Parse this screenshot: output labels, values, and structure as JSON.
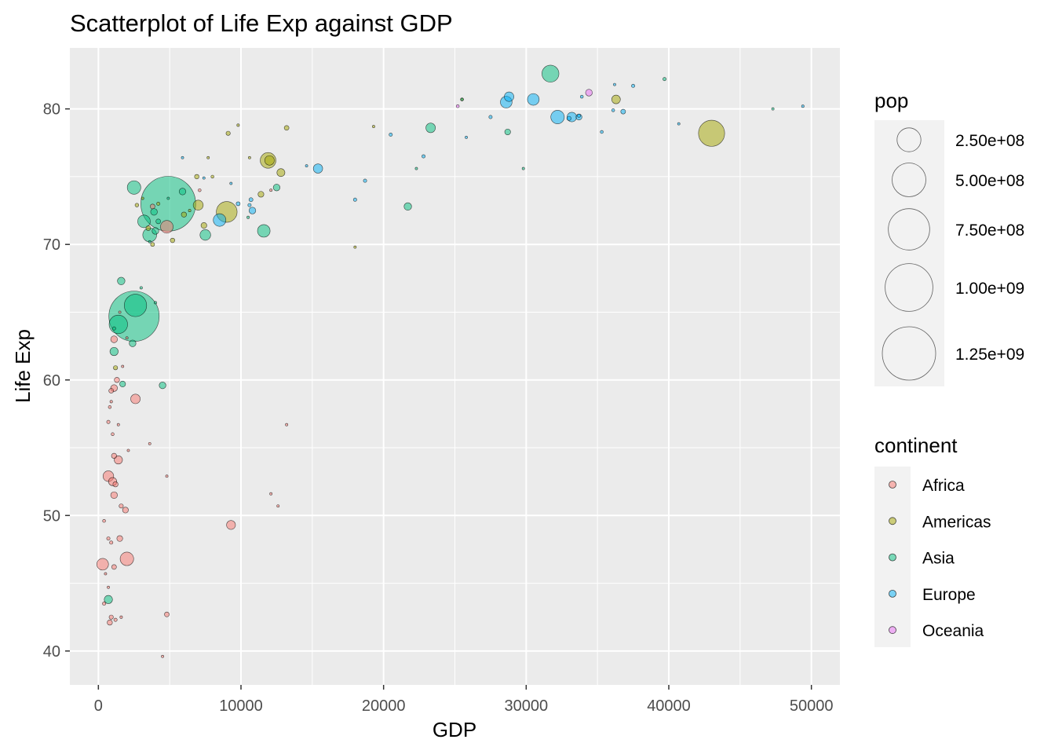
{
  "chart_data": {
    "type": "scatter",
    "title": "Scatterplot of Life Exp against GDP",
    "xlabel": "GDP",
    "ylabel": "Life Exp",
    "xlim": [
      -2000,
      52000
    ],
    "ylim": [
      37.5,
      84.5
    ],
    "x_ticks": [
      0,
      10000,
      20000,
      30000,
      40000,
      50000
    ],
    "y_ticks": [
      40,
      50,
      60,
      70,
      80
    ],
    "grid": true,
    "size_legend": {
      "title": "pop",
      "breaks": [
        250000000,
        500000000,
        750000000,
        1000000000,
        1250000000
      ],
      "labels": [
        "2.50e+08",
        "5.00e+08",
        "7.50e+08",
        "1.00e+09",
        "1.25e+09"
      ]
    },
    "color_legend": {
      "title": "continent",
      "entries": [
        {
          "name": "Africa",
          "color": "#F8766D"
        },
        {
          "name": "Americas",
          "color": "#A3A500"
        },
        {
          "name": "Asia",
          "color": "#00BF7D"
        },
        {
          "name": "Europe",
          "color": "#00B0F6"
        },
        {
          "name": "Oceania",
          "color": "#E76BF3"
        }
      ]
    },
    "series": [
      {
        "name": "Africa",
        "points": [
          [
            300,
            46.4,
            60000000
          ],
          [
            2000,
            46.8,
            80000000
          ],
          [
            9300,
            49.3,
            35000000
          ],
          [
            700,
            52.9,
            50000000
          ],
          [
            1000,
            52.5,
            30000000
          ],
          [
            1200,
            52.3,
            12000000
          ],
          [
            1100,
            51.5,
            20000000
          ],
          [
            1400,
            54.1,
            30000000
          ],
          [
            1100,
            54.4,
            12000000
          ],
          [
            1300,
            60.0,
            12000000
          ],
          [
            1100,
            59.4,
            20000000
          ],
          [
            900,
            59.2,
            10000000
          ],
          [
            2600,
            58.6,
            40000000
          ],
          [
            1100,
            63.0,
            20000000
          ],
          [
            4800,
            71.3,
            70000000
          ],
          [
            1500,
            48.3,
            15000000
          ],
          [
            700,
            48.3,
            5000000
          ],
          [
            900,
            48.0,
            5000000
          ],
          [
            400,
            49.6,
            4000000
          ],
          [
            400,
            43.5,
            5000000
          ],
          [
            800,
            42.1,
            12000000
          ],
          [
            900,
            42.5,
            8000000
          ],
          [
            1200,
            42.3,
            5000000
          ],
          [
            1600,
            42.5,
            3000000
          ],
          [
            4800,
            42.7,
            10000000
          ],
          [
            4500,
            39.6,
            1000000
          ],
          [
            500,
            45.7,
            1000000
          ],
          [
            700,
            44.7,
            2000000
          ],
          [
            1100,
            46.2,
            10000000
          ],
          [
            1600,
            50.7,
            8000000
          ],
          [
            1900,
            50.4,
            15000000
          ],
          [
            1000,
            56.0,
            4000000
          ],
          [
            700,
            56.9,
            5000000
          ],
          [
            800,
            58.0,
            4000000
          ],
          [
            900,
            58.4,
            3000000
          ],
          [
            1400,
            56.7,
            2500000
          ],
          [
            2100,
            54.8,
            1000000
          ],
          [
            3600,
            55.3,
            2000000
          ],
          [
            4800,
            52.9,
            2000000
          ],
          [
            12100,
            51.6,
            1000000
          ],
          [
            12600,
            50.7,
            1000000
          ],
          [
            13200,
            56.7,
            1000000
          ],
          [
            3800,
            72.8,
            10000000
          ],
          [
            7100,
            74.0,
            4000000
          ],
          [
            12100,
            74.0,
            3000000
          ],
          [
            1700,
            61.0,
            2000000
          ],
          [
            2000,
            63.1,
            1000000
          ],
          [
            1500,
            65.0,
            1000000
          ]
        ]
      },
      {
        "name": "Americas",
        "points": [
          [
            43000,
            78.2,
            300000000
          ],
          [
            9000,
            72.4,
            190000000
          ],
          [
            12000,
            76.2,
            40000000
          ],
          [
            36300,
            80.7,
            33000000
          ],
          [
            7000,
            72.9,
            44000000
          ],
          [
            11900,
            76.2,
            108000000
          ],
          [
            7400,
            71.4,
            15000000
          ],
          [
            12800,
            75.3,
            28000000
          ],
          [
            11400,
            73.7,
            15000000
          ],
          [
            13200,
            78.6,
            10000000
          ],
          [
            9100,
            78.2,
            8000000
          ],
          [
            6000,
            72.2,
            12000000
          ],
          [
            8000,
            75.0,
            4000000
          ],
          [
            5200,
            70.3,
            9000000
          ],
          [
            3500,
            71.2,
            10000000
          ],
          [
            3800,
            70.0,
            7000000
          ],
          [
            6900,
            75.0,
            9000000
          ],
          [
            19300,
            78.7,
            1000000
          ],
          [
            25500,
            80.7,
            4000000
          ],
          [
            18000,
            69.8,
            1000000
          ],
          [
            10600,
            76.4,
            1000000
          ],
          [
            9800,
            78.8,
            3000000
          ],
          [
            7700,
            76.4,
            1000000
          ],
          [
            4200,
            73.0,
            5000000
          ],
          [
            2700,
            72.9,
            6000000
          ],
          [
            6400,
            72.5,
            3000000
          ],
          [
            1200,
            60.9,
            8000000
          ],
          [
            3100,
            73.4,
            3000000
          ]
        ]
      },
      {
        "name": "Asia",
        "points": [
          [
            4900,
            73.0,
            1320000000
          ],
          [
            2500,
            64.7,
            1110000000
          ],
          [
            2600,
            65.5,
            220000000
          ],
          [
            31700,
            82.6,
            127000000
          ],
          [
            3600,
            70.7,
            85000000
          ],
          [
            1400,
            64.1,
            150000000
          ],
          [
            2500,
            74.2,
            80000000
          ],
          [
            3200,
            71.7,
            70000000
          ],
          [
            1100,
            62.1,
            30000000
          ],
          [
            700,
            43.8,
            30000000
          ],
          [
            2400,
            62.7,
            20000000
          ],
          [
            4000,
            71.0,
            20000000
          ],
          [
            5900,
            73.9,
            20000000
          ],
          [
            7500,
            70.7,
            50000000
          ],
          [
            11600,
            71.0,
            70000000
          ],
          [
            12500,
            74.2,
            20000000
          ],
          [
            3900,
            72.4,
            20000000
          ],
          [
            4500,
            59.6,
            20000000
          ],
          [
            21700,
            72.8,
            25000000
          ],
          [
            23300,
            78.6,
            40000000
          ],
          [
            28700,
            78.3,
            15000000
          ],
          [
            1600,
            67.3,
            25000000
          ],
          [
            1700,
            59.7,
            15000000
          ],
          [
            4200,
            71.7,
            10000000
          ],
          [
            1100,
            63.8,
            5000000
          ],
          [
            3600,
            70.2,
            1000000
          ],
          [
            29800,
            75.6,
            1000000
          ],
          [
            39700,
            82.2,
            5000000
          ],
          [
            47300,
            80.0,
            2000000
          ],
          [
            22300,
            75.6,
            2000000
          ],
          [
            25500,
            80.7,
            3000000
          ],
          [
            4000,
            65.7,
            3000000
          ],
          [
            3000,
            66.8,
            3000000
          ],
          [
            4900,
            73.4,
            2000000
          ],
          [
            10500,
            72.0,
            3000000
          ]
        ]
      },
      {
        "name": "Europe",
        "points": [
          [
            32200,
            79.4,
            80000000
          ],
          [
            30500,
            80.7,
            60000000
          ],
          [
            28600,
            80.5,
            60000000
          ],
          [
            28800,
            80.9,
            40000000
          ],
          [
            33200,
            79.4,
            40000000
          ],
          [
            8500,
            71.8,
            70000000
          ],
          [
            15400,
            75.6,
            38000000
          ],
          [
            33700,
            79.4,
            16000000
          ],
          [
            36800,
            79.8,
            10000000
          ],
          [
            33000,
            79.3,
            8000000
          ],
          [
            27500,
            79.4,
            5000000
          ],
          [
            9800,
            73.0,
            7000000
          ],
          [
            10600,
            72.9,
            5000000
          ],
          [
            10800,
            72.5,
            20000000
          ],
          [
            10700,
            73.3,
            7000000
          ],
          [
            18000,
            73.3,
            5000000
          ],
          [
            20500,
            78.1,
            5000000
          ],
          [
            22800,
            76.5,
            5000000
          ],
          [
            18700,
            74.7,
            5000000
          ],
          [
            33900,
            80.9,
            4000000
          ],
          [
            35300,
            78.3,
            4000000
          ],
          [
            36100,
            79.9,
            4000000
          ],
          [
            37500,
            81.7,
            5000000
          ],
          [
            40700,
            78.9,
            2000000
          ],
          [
            49400,
            80.2,
            3000000
          ],
          [
            25800,
            77.9,
            2000000
          ],
          [
            14600,
            75.8,
            2000000
          ],
          [
            9300,
            74.5,
            2000000
          ],
          [
            5900,
            76.4,
            2000000
          ],
          [
            7400,
            74.9,
            2000000
          ],
          [
            33700,
            79.5,
            5000000
          ],
          [
            36200,
            81.8,
            1000000
          ]
        ]
      },
      {
        "name": "Oceania",
        "points": [
          [
            34400,
            81.2,
            20000000
          ],
          [
            25200,
            80.2,
            4000000
          ]
        ]
      }
    ]
  }
}
